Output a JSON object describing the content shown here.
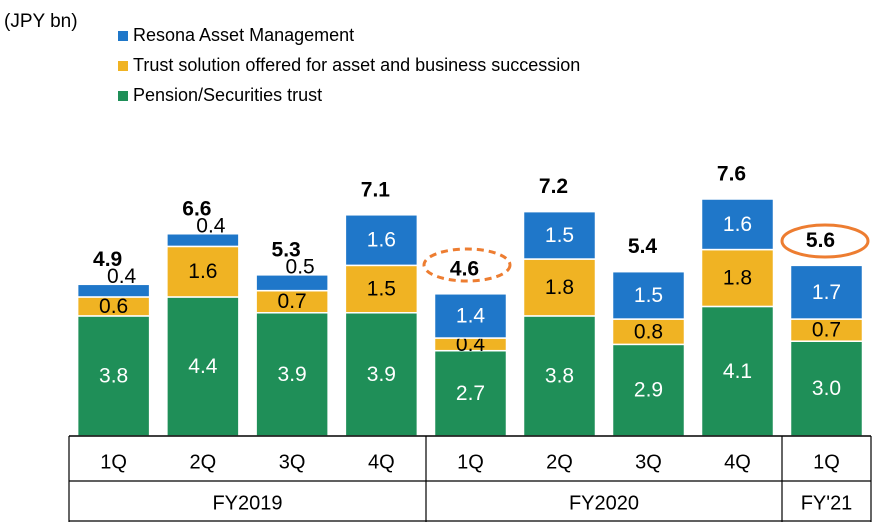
{
  "chart_data": {
    "type": "stacked-bar",
    "unit_label": "(JPY bn)",
    "categories": [
      "1Q",
      "2Q",
      "3Q",
      "4Q",
      "1Q",
      "2Q",
      "3Q",
      "4Q",
      "1Q"
    ],
    "groups": [
      "FY2019",
      "FY2020",
      "FY'21"
    ],
    "series": [
      {
        "name": "Pension/Securities trust",
        "color": "#1f8f58",
        "values": [
          3.8,
          4.4,
          3.9,
          3.9,
          2.7,
          3.8,
          2.9,
          4.1,
          3.0
        ],
        "value_labels": [
          "3.8",
          "4.4",
          "3.9",
          "3.9",
          "2.7",
          "3.8",
          "2.9",
          "4.1",
          "3.0"
        ]
      },
      {
        "name": "Trust solution offered for asset and business succession",
        "color": "#f0b323",
        "values": [
          0.6,
          1.6,
          0.7,
          1.5,
          0.4,
          1.8,
          0.8,
          1.8,
          0.7
        ],
        "value_labels": [
          "0.6",
          "1.6",
          "0.7",
          "1.5",
          "0.4",
          "1.8",
          "0.8",
          "1.8",
          "0.7"
        ]
      },
      {
        "name": "Resona Asset Management",
        "color": "#1f77c9",
        "values": [
          0.4,
          0.4,
          0.5,
          1.6,
          1.4,
          1.5,
          1.5,
          1.6,
          1.7
        ],
        "value_labels": [
          "0.4",
          "0.4",
          "0.5",
          "1.6",
          "1.4",
          "1.5",
          "1.5",
          "1.6",
          "1.7"
        ]
      }
    ],
    "totals": [
      4.9,
      6.6,
      5.3,
      7.1,
      4.6,
      7.2,
      5.4,
      7.6,
      5.6
    ]
  }
}
